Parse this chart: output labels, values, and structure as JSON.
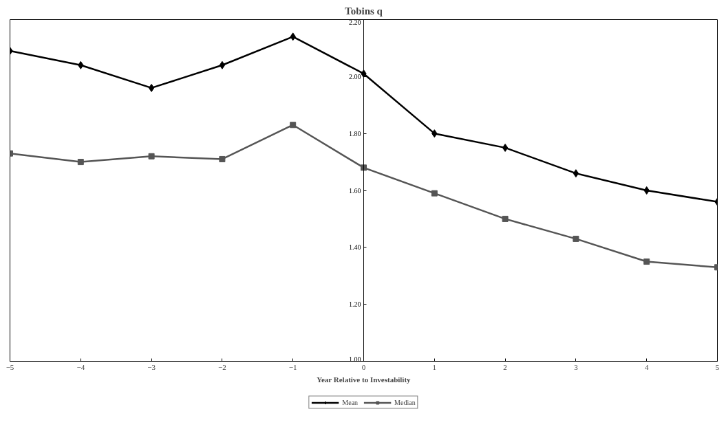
{
  "chart_data": {
    "type": "line",
    "title": "Tobins q",
    "xlabel": "Year Relative to Investability",
    "x": [
      -5,
      -4,
      -3,
      -2,
      -1,
      0,
      1,
      2,
      3,
      4,
      5
    ],
    "series": [
      {
        "name": "Mean",
        "color": "#000000",
        "marker": "diamond",
        "values": [
          2.09,
          2.04,
          1.96,
          2.04,
          2.14,
          2.01,
          1.8,
          1.75,
          1.66,
          1.6,
          1.56
        ]
      },
      {
        "name": "Median",
        "color": "#555555",
        "marker": "square",
        "values": [
          1.73,
          1.7,
          1.72,
          1.71,
          1.83,
          1.68,
          1.59,
          1.5,
          1.43,
          1.35,
          1.33
        ]
      }
    ],
    "xlim": [
      -5,
      5
    ],
    "ylim": [
      1.0,
      2.2
    ],
    "xticks": [
      -5,
      -4,
      -3,
      -2,
      -1,
      0,
      1,
      2,
      3,
      4,
      5
    ],
    "yticks": [
      {
        "value": 1.0,
        "label": "1.00"
      },
      {
        "value": 1.2,
        "label": "1.20"
      },
      {
        "value": 1.4,
        "label": "1.40"
      },
      {
        "value": 1.6,
        "label": "1.60"
      },
      {
        "value": 1.8,
        "label": "1.80"
      },
      {
        "value": 2.0,
        "label": "2.00"
      },
      {
        "value": 2.2,
        "label": "2.20"
      }
    ],
    "grid": false,
    "legend": "bottom",
    "line_style": "solid"
  }
}
